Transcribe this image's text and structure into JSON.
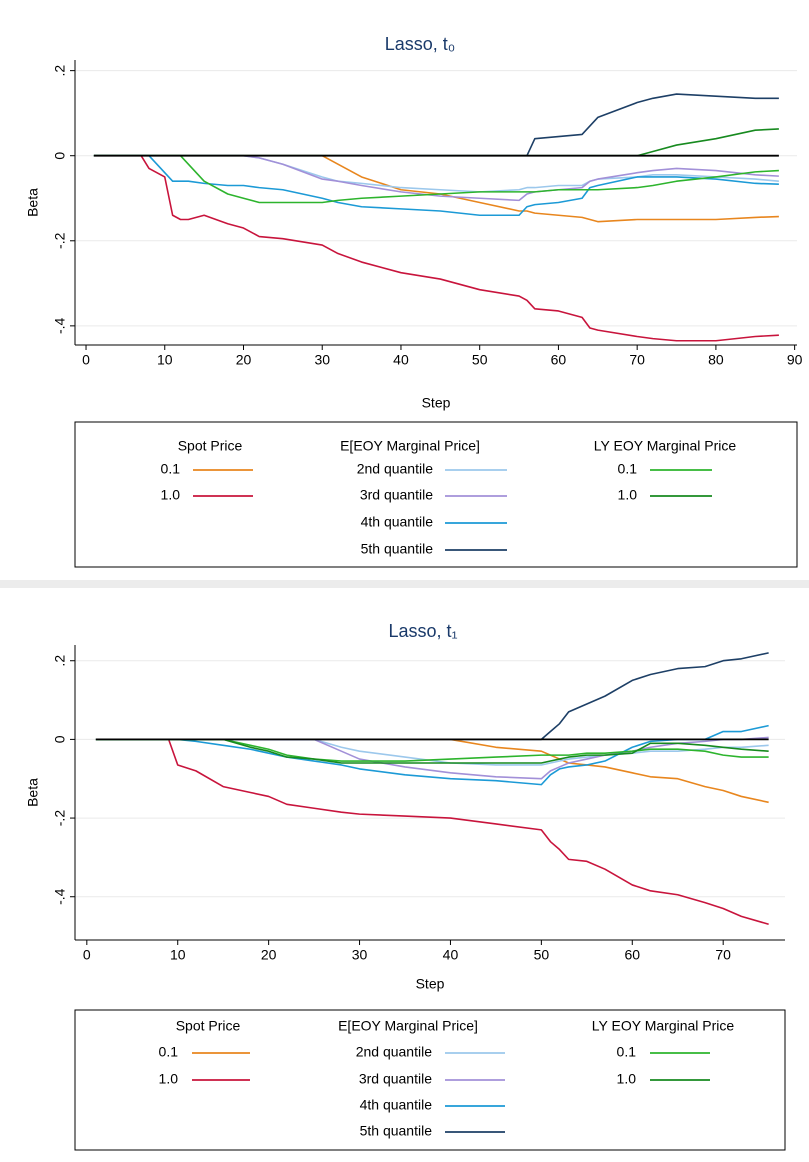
{
  "chart_data": [
    {
      "type": "line",
      "title": "Lasso, t₀",
      "xlabel": "Step",
      "ylabel": "Beta",
      "x": [
        1,
        7,
        8,
        9,
        10,
        11,
        12,
        13,
        15,
        18,
        20,
        22,
        25,
        30,
        32,
        35,
        40,
        45,
        50,
        55,
        56,
        57,
        60,
        63,
        64,
        65,
        70,
        72,
        75,
        80,
        85,
        88
      ],
      "groups": [
        {
          "title": "Spot Price",
          "series": [
            {
              "name": "0.1",
              "color": "#e8861e",
              "values": [
                0,
                0,
                0,
                0,
                0,
                0,
                0,
                0,
                0,
                0,
                0,
                0,
                0,
                0,
                -0.02,
                -0.05,
                -0.08,
                -0.09,
                -0.11,
                -0.13,
                -0.13,
                -0.135,
                -0.14,
                -0.145,
                -0.15,
                -0.155,
                -0.15,
                -0.15,
                -0.15,
                -0.15,
                -0.145,
                -0.143
              ]
            },
            {
              "name": "1.0",
              "color": "#c8143c",
              "values": [
                0,
                0,
                -0.03,
                -0.04,
                -0.05,
                -0.14,
                -0.15,
                -0.15,
                -0.14,
                -0.16,
                -0.17,
                -0.19,
                -0.195,
                -0.21,
                -0.23,
                -0.25,
                -0.275,
                -0.29,
                -0.315,
                -0.33,
                -0.34,
                -0.36,
                -0.365,
                -0.38,
                -0.405,
                -0.41,
                -0.425,
                -0.43,
                -0.435,
                -0.435,
                -0.425,
                -0.422
              ]
            }
          ]
        },
        {
          "title": "E[EOY Marginal Price]",
          "series": [
            {
              "name": "2nd quantile",
              "color": "#9cc8ec",
              "values": [
                0,
                0,
                0,
                0,
                0,
                0,
                0,
                0,
                0,
                0,
                0,
                -0.005,
                -0.02,
                -0.05,
                -0.06,
                -0.065,
                -0.075,
                -0.08,
                -0.085,
                -0.08,
                -0.075,
                -0.075,
                -0.07,
                -0.07,
                -0.06,
                -0.055,
                -0.05,
                -0.045,
                -0.045,
                -0.05,
                -0.055,
                -0.06
              ]
            },
            {
              "name": "3rd quantile",
              "color": "#a290d8",
              "values": [
                0,
                0,
                0,
                0,
                0,
                0,
                0,
                0,
                0,
                0,
                0,
                -0.005,
                -0.02,
                -0.055,
                -0.06,
                -0.07,
                -0.085,
                -0.095,
                -0.1,
                -0.105,
                -0.09,
                -0.085,
                -0.08,
                -0.075,
                -0.06,
                -0.055,
                -0.04,
                -0.035,
                -0.03,
                -0.035,
                -0.045,
                -0.048
              ]
            },
            {
              "name": "4th quantile",
              "color": "#1c9ad6",
              "values": [
                0,
                0,
                0,
                -0.02,
                -0.04,
                -0.06,
                -0.06,
                -0.06,
                -0.065,
                -0.07,
                -0.07,
                -0.075,
                -0.08,
                -0.1,
                -0.11,
                -0.12,
                -0.125,
                -0.13,
                -0.14,
                -0.14,
                -0.12,
                -0.115,
                -0.11,
                -0.1,
                -0.075,
                -0.07,
                -0.05,
                -0.05,
                -0.05,
                -0.055,
                -0.065,
                -0.067
              ]
            },
            {
              "name": "5th quantile",
              "color": "#1d3f66",
              "values": [
                0,
                0,
                0,
                0,
                0,
                0,
                0,
                0,
                0,
                0,
                0,
                0,
                0,
                0,
                0,
                0,
                0,
                0,
                0,
                0,
                0,
                0.04,
                0.045,
                0.05,
                0.07,
                0.09,
                0.125,
                0.135,
                0.145,
                0.14,
                0.135,
                0.135
              ]
            }
          ]
        },
        {
          "title": "LY EOY Marginal Price",
          "series": [
            {
              "name": "0.1",
              "color": "#2db42d",
              "values": [
                0,
                0,
                0,
                0,
                0,
                0,
                0,
                -0.02,
                -0.06,
                -0.09,
                -0.1,
                -0.11,
                -0.11,
                -0.11,
                -0.105,
                -0.1,
                -0.095,
                -0.09,
                -0.085,
                -0.085,
                -0.085,
                -0.085,
                -0.08,
                -0.08,
                -0.08,
                -0.08,
                -0.075,
                -0.07,
                -0.06,
                -0.05,
                -0.038,
                -0.035
              ]
            },
            {
              "name": "1.0",
              "color": "#178a1f",
              "values": [
                0,
                0,
                0,
                0,
                0,
                0,
                0,
                0,
                0,
                0,
                0,
                0,
                0,
                0,
                0,
                0,
                0,
                0,
                0,
                0,
                0,
                0,
                0,
                0,
                0,
                0,
                0,
                0.01,
                0.025,
                0.04,
                0.06,
                0.063
              ]
            }
          ]
        }
      ],
      "xlim": [
        -1.4,
        90.3
      ],
      "ylim": [
        -0.445,
        0.225
      ],
      "xticks": [
        0,
        10,
        20,
        30,
        40,
        50,
        60,
        70,
        80,
        90
      ],
      "yticks": [
        {
          "value": 0.2,
          "label": ".2"
        },
        0,
        {
          "value": -0.2,
          "label": "-.2"
        },
        {
          "value": -0.4,
          "label": "-.4"
        }
      ],
      "grid": true,
      "zero_line": true
    },
    {
      "type": "line",
      "title": "Lasso, t₁",
      "xlabel": "Step",
      "ylabel": "Beta",
      "x": [
        1,
        9,
        10,
        12,
        15,
        18,
        20,
        22,
        25,
        28,
        30,
        35,
        40,
        45,
        50,
        51,
        52,
        53,
        55,
        57,
        60,
        62,
        65,
        68,
        70,
        72,
        75
      ],
      "groups": [
        {
          "title": "Spot Price",
          "series": [
            {
              "name": "0.1",
              "color": "#e8861e",
              "values": [
                0,
                0,
                0,
                0,
                0,
                0,
                0,
                0,
                0,
                0,
                0,
                0,
                0,
                -0.02,
                -0.03,
                -0.04,
                -0.05,
                -0.06,
                -0.065,
                -0.07,
                -0.085,
                -0.095,
                -0.1,
                -0.12,
                -0.13,
                -0.145,
                -0.16
              ]
            },
            {
              "name": "1.0",
              "color": "#c8143c",
              "values": [
                0,
                0,
                -0.065,
                -0.08,
                -0.12,
                -0.135,
                -0.145,
                -0.165,
                -0.175,
                -0.185,
                -0.19,
                -0.195,
                -0.2,
                -0.215,
                -0.23,
                -0.26,
                -0.28,
                -0.305,
                -0.31,
                -0.33,
                -0.37,
                -0.385,
                -0.395,
                -0.415,
                -0.43,
                -0.45,
                -0.47
              ]
            }
          ]
        },
        {
          "title": "E[EOY Marginal Price]",
          "series": [
            {
              "name": "2nd quantile",
              "color": "#9cc8ec",
              "values": [
                0,
                0,
                0,
                0,
                0,
                0,
                0,
                0,
                0,
                -0.02,
                -0.03,
                -0.045,
                -0.06,
                -0.065,
                -0.065,
                -0.06,
                -0.055,
                -0.05,
                -0.045,
                -0.04,
                -0.035,
                -0.03,
                -0.03,
                -0.025,
                -0.02,
                -0.02,
                -0.015
              ]
            },
            {
              "name": "3rd quantile",
              "color": "#a290d8",
              "values": [
                0,
                0,
                0,
                0,
                0,
                0,
                0,
                0,
                0,
                -0.03,
                -0.05,
                -0.07,
                -0.085,
                -0.095,
                -0.1,
                -0.08,
                -0.07,
                -0.06,
                -0.05,
                -0.04,
                -0.03,
                -0.02,
                -0.01,
                -0.005,
                0,
                0,
                0.005
              ]
            },
            {
              "name": "4th quantile",
              "color": "#1c9ad6",
              "values": [
                0,
                0,
                0,
                -0.005,
                -0.015,
                -0.025,
                -0.035,
                -0.045,
                -0.055,
                -0.065,
                -0.075,
                -0.09,
                -0.1,
                -0.105,
                -0.115,
                -0.09,
                -0.075,
                -0.07,
                -0.065,
                -0.055,
                -0.02,
                -0.005,
                0,
                0,
                0.02,
                0.02,
                0.035
              ]
            },
            {
              "name": "5th quantile",
              "color": "#1d3f66",
              "values": [
                0,
                0,
                0,
                0,
                0,
                0,
                0,
                0,
                0,
                0,
                0,
                0,
                0,
                0,
                0,
                0.02,
                0.04,
                0.07,
                0.09,
                0.11,
                0.15,
                0.165,
                0.18,
                0.185,
                0.2,
                0.205,
                0.22
              ]
            }
          ]
        },
        {
          "title": "LY EOY Marginal Price",
          "series": [
            {
              "name": "0.1",
              "color": "#2db42d",
              "values": [
                0,
                0,
                0,
                0,
                0,
                -0.015,
                -0.025,
                -0.04,
                -0.05,
                -0.055,
                -0.055,
                -0.055,
                -0.05,
                -0.045,
                -0.04,
                -0.04,
                -0.04,
                -0.04,
                -0.035,
                -0.035,
                -0.03,
                -0.025,
                -0.025,
                -0.03,
                -0.04,
                -0.045,
                -0.045
              ]
            },
            {
              "name": "1.0",
              "color": "#178a1f",
              "values": [
                0,
                0,
                0,
                0,
                0,
                -0.02,
                -0.03,
                -0.045,
                -0.05,
                -0.06,
                -0.06,
                -0.06,
                -0.06,
                -0.06,
                -0.06,
                -0.055,
                -0.05,
                -0.045,
                -0.04,
                -0.04,
                -0.035,
                -0.01,
                -0.01,
                -0.015,
                -0.02,
                -0.025,
                -0.03
              ]
            }
          ]
        }
      ],
      "xlim": [
        -1.3,
        76.8
      ],
      "ylim": [
        -0.51,
        0.24
      ],
      "xticks": [
        0,
        10,
        20,
        30,
        40,
        50,
        60,
        70
      ],
      "yticks": [
        {
          "value": 0.2,
          "label": ".2"
        },
        0,
        {
          "value": -0.2,
          "label": "-.2"
        },
        {
          "value": -0.4,
          "label": "-.4"
        }
      ],
      "grid": true,
      "zero_line": true
    }
  ]
}
